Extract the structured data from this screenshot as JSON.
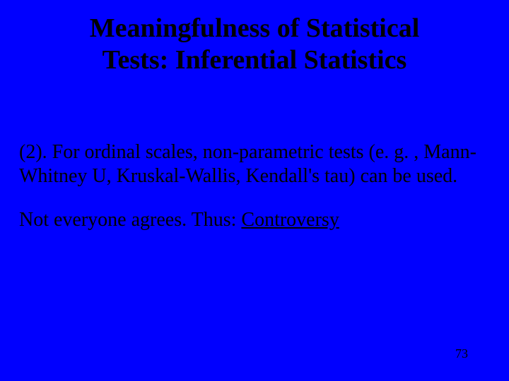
{
  "slide": {
    "background_color": "#0000ff",
    "text_color": "#000000",
    "title_fontsize": 38,
    "body_fontsize": 28,
    "pagenum_fontsize": 18,
    "font_family": "Times New Roman"
  },
  "title": {
    "line1": "Meaningfulness of Statistical",
    "line2": "Tests: Inferential Statistics"
  },
  "body": {
    "p1": "(2).  For ordinal scales, non-parametric tests (e. g. , Mann-Whitney U, Kruskal-Wallis, Kendall's tau) can be used.",
    "p2_prefix": "Not everyone agrees. Thus:  ",
    "p2_underlined": "Controversy"
  },
  "page_number": "73"
}
